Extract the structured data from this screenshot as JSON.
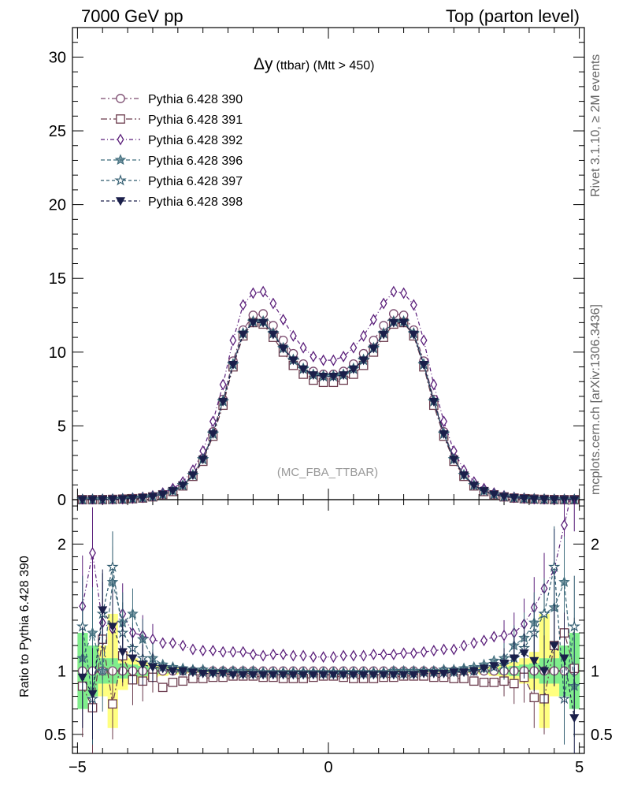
{
  "header": {
    "left": "7000 GeV pp",
    "right": "Top (parton level)"
  },
  "side_labels": {
    "rivet": "Rivet 3.1.10, ≥ 2M events",
    "mcplots": "mcplots.cern.ch [arXiv:1306.3436]"
  },
  "chart_data": [
    {
      "type": "line",
      "panel": "main",
      "title": "Δy (ttbar) (Mtt > 450)",
      "title_main": "Δy",
      "title_sub": "(ttbar) (Mtt > 450)",
      "watermark": "(MC_FBA_TTBAR)",
      "ylim": [
        0,
        32
      ],
      "yticks": [
        0,
        5,
        10,
        15,
        20,
        25,
        30
      ],
      "xlim": [
        -5.1,
        5.1
      ],
      "legend_position": "top-left",
      "x": [
        -4.9,
        -4.7,
        -4.5,
        -4.3,
        -4.1,
        -3.9,
        -3.7,
        -3.5,
        -3.3,
        -3.1,
        -2.9,
        -2.7,
        -2.5,
        -2.3,
        -2.1,
        -1.9,
        -1.7,
        -1.5,
        -1.3,
        -1.1,
        -0.9,
        -0.7,
        -0.5,
        -0.3,
        -0.1,
        0.1,
        0.3,
        0.5,
        0.7,
        0.9,
        1.1,
        1.3,
        1.5,
        1.7,
        1.9,
        2.1,
        2.3,
        2.5,
        2.7,
        2.9,
        3.1,
        3.3,
        3.5,
        3.7,
        3.9,
        4.1,
        4.3,
        4.5,
        4.7,
        4.9
      ],
      "series": [
        {
          "name": "Pythia 6.428 390",
          "color": "#7a4a6e",
          "marker": "circle",
          "dash": "6,3,2,3",
          "values": [
            0.003,
            0.005,
            0.01,
            0.02,
            0.04,
            0.07,
            0.12,
            0.2,
            0.35,
            0.6,
            1.0,
            1.7,
            2.8,
            4.6,
            6.8,
            9.4,
            11.5,
            12.5,
            12.6,
            11.8,
            10.8,
            9.9,
            9.2,
            8.7,
            8.5,
            8.5,
            8.7,
            9.2,
            9.9,
            10.8,
            11.8,
            12.6,
            12.5,
            11.5,
            9.4,
            6.8,
            4.6,
            2.8,
            1.7,
            1.0,
            0.6,
            0.35,
            0.2,
            0.12,
            0.07,
            0.04,
            0.02,
            0.01,
            0.005,
            0.003
          ]
        },
        {
          "name": "Pythia 6.428 391",
          "color": "#6a3a4c",
          "marker": "square",
          "dash": "8,3,2,3",
          "values": [
            0.003,
            0.004,
            0.009,
            0.019,
            0.038,
            0.066,
            0.11,
            0.19,
            0.33,
            0.55,
            0.93,
            1.58,
            2.6,
            4.3,
            6.4,
            9.0,
            11.1,
            12.0,
            11.9,
            11.0,
            10.0,
            9.1,
            8.5,
            8.1,
            7.95,
            7.95,
            8.1,
            8.5,
            9.1,
            10.0,
            11.0,
            11.9,
            12.0,
            11.1,
            9.0,
            6.4,
            4.3,
            2.6,
            1.58,
            0.93,
            0.55,
            0.33,
            0.19,
            0.11,
            0.066,
            0.038,
            0.019,
            0.009,
            0.004,
            0.003
          ]
        },
        {
          "name": "Pythia 6.428 392",
          "color": "#5a1e7a",
          "marker": "diamond",
          "dash": "5,3,1,3",
          "values": [
            0.005,
            0.009,
            0.016,
            0.03,
            0.055,
            0.1,
            0.16,
            0.26,
            0.45,
            0.75,
            1.2,
            2.0,
            3.3,
            5.3,
            7.8,
            10.8,
            13.2,
            14.0,
            14.1,
            13.3,
            12.2,
            11.1,
            10.3,
            9.7,
            9.45,
            9.45,
            9.7,
            10.3,
            11.1,
            12.2,
            13.3,
            14.1,
            14.0,
            13.2,
            10.8,
            7.8,
            5.3,
            3.3,
            2.0,
            1.2,
            0.75,
            0.45,
            0.26,
            0.16,
            0.1,
            0.055,
            0.03,
            0.016,
            0.009,
            0.005
          ]
        },
        {
          "name": "Pythia 6.428 396",
          "color": "#3f6c7c",
          "marker": "star4",
          "dash": "5,3",
          "values": [
            0.004,
            0.006,
            0.012,
            0.024,
            0.045,
            0.08,
            0.13,
            0.21,
            0.36,
            0.6,
            0.98,
            1.68,
            2.75,
            4.5,
            6.7,
            9.2,
            11.3,
            12.1,
            12.1,
            11.3,
            10.3,
            9.5,
            8.9,
            8.5,
            8.4,
            8.4,
            8.5,
            8.9,
            9.5,
            10.3,
            11.3,
            12.1,
            12.1,
            11.3,
            9.2,
            6.7,
            4.5,
            2.75,
            1.68,
            0.98,
            0.6,
            0.36,
            0.21,
            0.13,
            0.08,
            0.045,
            0.024,
            0.012,
            0.006,
            0.004
          ]
        },
        {
          "name": "Pythia 6.428 397",
          "color": "#2e5a6e",
          "marker": "star",
          "dash": "4,3",
          "values": [
            0.003,
            0.005,
            0.011,
            0.022,
            0.042,
            0.075,
            0.125,
            0.205,
            0.35,
            0.59,
            0.97,
            1.66,
            2.72,
            4.45,
            6.65,
            9.15,
            11.25,
            12.05,
            12.05,
            11.25,
            10.25,
            9.45,
            8.85,
            8.45,
            8.35,
            8.35,
            8.45,
            8.85,
            9.45,
            10.25,
            11.25,
            12.05,
            12.05,
            11.25,
            9.15,
            6.65,
            4.45,
            2.72,
            1.66,
            0.97,
            0.59,
            0.35,
            0.205,
            0.125,
            0.075,
            0.042,
            0.022,
            0.011,
            0.005,
            0.003
          ]
        },
        {
          "name": "Pythia 6.428 398",
          "color": "#1a1f4a",
          "marker": "triangle-down",
          "dash": "4,3",
          "values": [
            0.003,
            0.005,
            0.011,
            0.022,
            0.043,
            0.076,
            0.126,
            0.205,
            0.35,
            0.6,
            0.97,
            1.66,
            2.73,
            4.45,
            6.65,
            9.15,
            11.2,
            12.0,
            12.0,
            11.2,
            10.25,
            9.45,
            8.85,
            8.45,
            8.35,
            8.35,
            8.45,
            8.85,
            9.45,
            10.25,
            11.2,
            12.0,
            12.0,
            11.2,
            9.15,
            6.65,
            4.45,
            2.73,
            1.66,
            0.97,
            0.6,
            0.35,
            0.205,
            0.126,
            0.076,
            0.043,
            0.022,
            0.011,
            0.005,
            0.003
          ]
        }
      ]
    },
    {
      "type": "line",
      "panel": "ratio",
      "ylabel": "Ratio to Pythia 6.428 390",
      "ylim": [
        0.35,
        2.35
      ],
      "yticks": [
        0.5,
        1,
        2
      ],
      "ytick_labels": [
        "0.5",
        "1",
        "2"
      ],
      "xlim": [
        -5.1,
        5.1
      ],
      "xticks": [
        -5,
        0,
        5
      ],
      "xtick_labels": [
        "−5",
        "0",
        "5"
      ],
      "reference": 1,
      "band_green": [
        0.7,
        0.8,
        0.9,
        0.9,
        0.94,
        0.95,
        0.96,
        0.97,
        0.98,
        0.985,
        0.99,
        0.99,
        0.99,
        0.992,
        0.992,
        0.993,
        0.993,
        0.993,
        0.993,
        0.993,
        0.993,
        0.993,
        0.993,
        0.993,
        0.993,
        0.993,
        0.993,
        0.993,
        0.993,
        0.993,
        0.993,
        0.993,
        0.993,
        0.993,
        0.993,
        0.992,
        0.992,
        0.99,
        0.99,
        0.99,
        0.985,
        0.98,
        0.97,
        0.96,
        0.95,
        0.94,
        0.9,
        0.9,
        0.8,
        0.7
      ],
      "band_yellow": [
        0.9,
        1.0,
        1.2,
        0.55,
        0.85,
        0.9,
        0.93,
        0.95,
        0.96,
        0.97,
        0.98,
        0.985,
        0.987,
        0.988,
        0.99,
        0.99,
        0.99,
        0.99,
        0.99,
        0.99,
        0.99,
        0.99,
        0.99,
        0.99,
        0.99,
        0.99,
        0.99,
        0.99,
        0.99,
        0.99,
        0.99,
        0.99,
        0.99,
        0.99,
        0.99,
        0.99,
        0.988,
        0.987,
        0.985,
        0.98,
        0.97,
        0.96,
        0.95,
        0.93,
        0.9,
        0.85,
        0.55,
        1.2,
        1.0,
        0.9
      ],
      "series": [
        {
          "name": "Pythia 6.428 391",
          "values": [
            0.88,
            0.71,
            1.25,
            0.74,
            1.12,
            0.93,
            0.92,
            0.95,
            0.87,
            0.91,
            0.92,
            0.94,
            0.94,
            0.95,
            0.95,
            0.96,
            0.96,
            0.96,
            0.95,
            0.95,
            0.94,
            0.94,
            0.94,
            0.95,
            0.96,
            0.96,
            0.95,
            0.94,
            0.94,
            0.94,
            0.95,
            0.95,
            0.96,
            0.96,
            0.96,
            0.95,
            0.95,
            0.94,
            0.94,
            0.92,
            0.91,
            0.91,
            0.92,
            0.9,
            0.95,
            0.79,
            0.78,
            1.2,
            1.3,
            1.02
          ]
        },
        {
          "name": "Pythia 6.428 392",
          "values": [
            1.51,
            1.93,
            1.38,
            1.33,
            1.45,
            1.3,
            1.28,
            1.25,
            1.22,
            1.22,
            1.2,
            1.17,
            1.16,
            1.16,
            1.15,
            1.15,
            1.15,
            1.13,
            1.12,
            1.13,
            1.13,
            1.12,
            1.12,
            1.11,
            1.11,
            1.11,
            1.12,
            1.12,
            1.12,
            1.13,
            1.13,
            1.13,
            1.14,
            1.14,
            1.15,
            1.16,
            1.17,
            1.17,
            1.2,
            1.22,
            1.24,
            1.27,
            1.28,
            1.3,
            1.37,
            1.5,
            1.65,
            1.8,
            2.15,
            2.5
          ]
        },
        {
          "name": "Pythia 6.428 396",
          "values": [
            1.1,
            1.3,
            1.0,
            1.7,
            1.38,
            1.45,
            1.25,
            1.1,
            1.05,
            1.03,
            1.02,
            1.01,
            1.01,
            1.0,
            1.0,
            1.0,
            1.0,
            1.0,
            0.99,
            0.99,
            0.99,
            0.99,
            0.99,
            0.99,
            0.99,
            0.99,
            0.99,
            0.99,
            0.99,
            0.99,
            0.99,
            1.0,
            1.0,
            1.0,
            1.0,
            1.0,
            1.01,
            1.01,
            1.02,
            1.03,
            1.05,
            1.08,
            1.1,
            1.2,
            1.26,
            1.38,
            1.45,
            1.5,
            1.7,
            0.88
          ]
        },
        {
          "name": "Pythia 6.428 397",
          "values": [
            1.35,
            0.78,
            1.45,
            1.82,
            1.3,
            1.18,
            1.1,
            1.05,
            1.03,
            1.02,
            1.0,
            1.0,
            0.99,
            0.99,
            0.99,
            0.99,
            0.98,
            0.98,
            0.98,
            0.98,
            0.98,
            0.98,
            0.98,
            0.98,
            0.98,
            0.98,
            0.98,
            0.98,
            0.98,
            0.98,
            0.98,
            0.98,
            0.98,
            0.98,
            0.99,
            0.99,
            0.99,
            0.99,
            1.0,
            1.0,
            1.02,
            1.03,
            1.05,
            1.1,
            1.18,
            1.3,
            1.45,
            1.82,
            0.78,
            1.35
          ]
        },
        {
          "name": "Pythia 6.428 398",
          "values": [
            0.95,
            0.82,
            1.48,
            1.35,
            1.15,
            1.1,
            1.05,
            1.03,
            1.02,
            1.0,
            1.0,
            0.99,
            0.98,
            0.98,
            0.98,
            0.97,
            0.97,
            0.97,
            0.97,
            0.97,
            0.97,
            0.97,
            0.97,
            0.97,
            0.97,
            0.97,
            0.97,
            0.97,
            0.97,
            0.97,
            0.97,
            0.97,
            0.97,
            0.97,
            0.98,
            0.98,
            0.98,
            0.99,
            0.99,
            1.0,
            1.02,
            1.04,
            1.06,
            1.1,
            1.14,
            1.08,
            1.0,
            1.2,
            1.1,
            0.63
          ]
        }
      ]
    }
  ]
}
